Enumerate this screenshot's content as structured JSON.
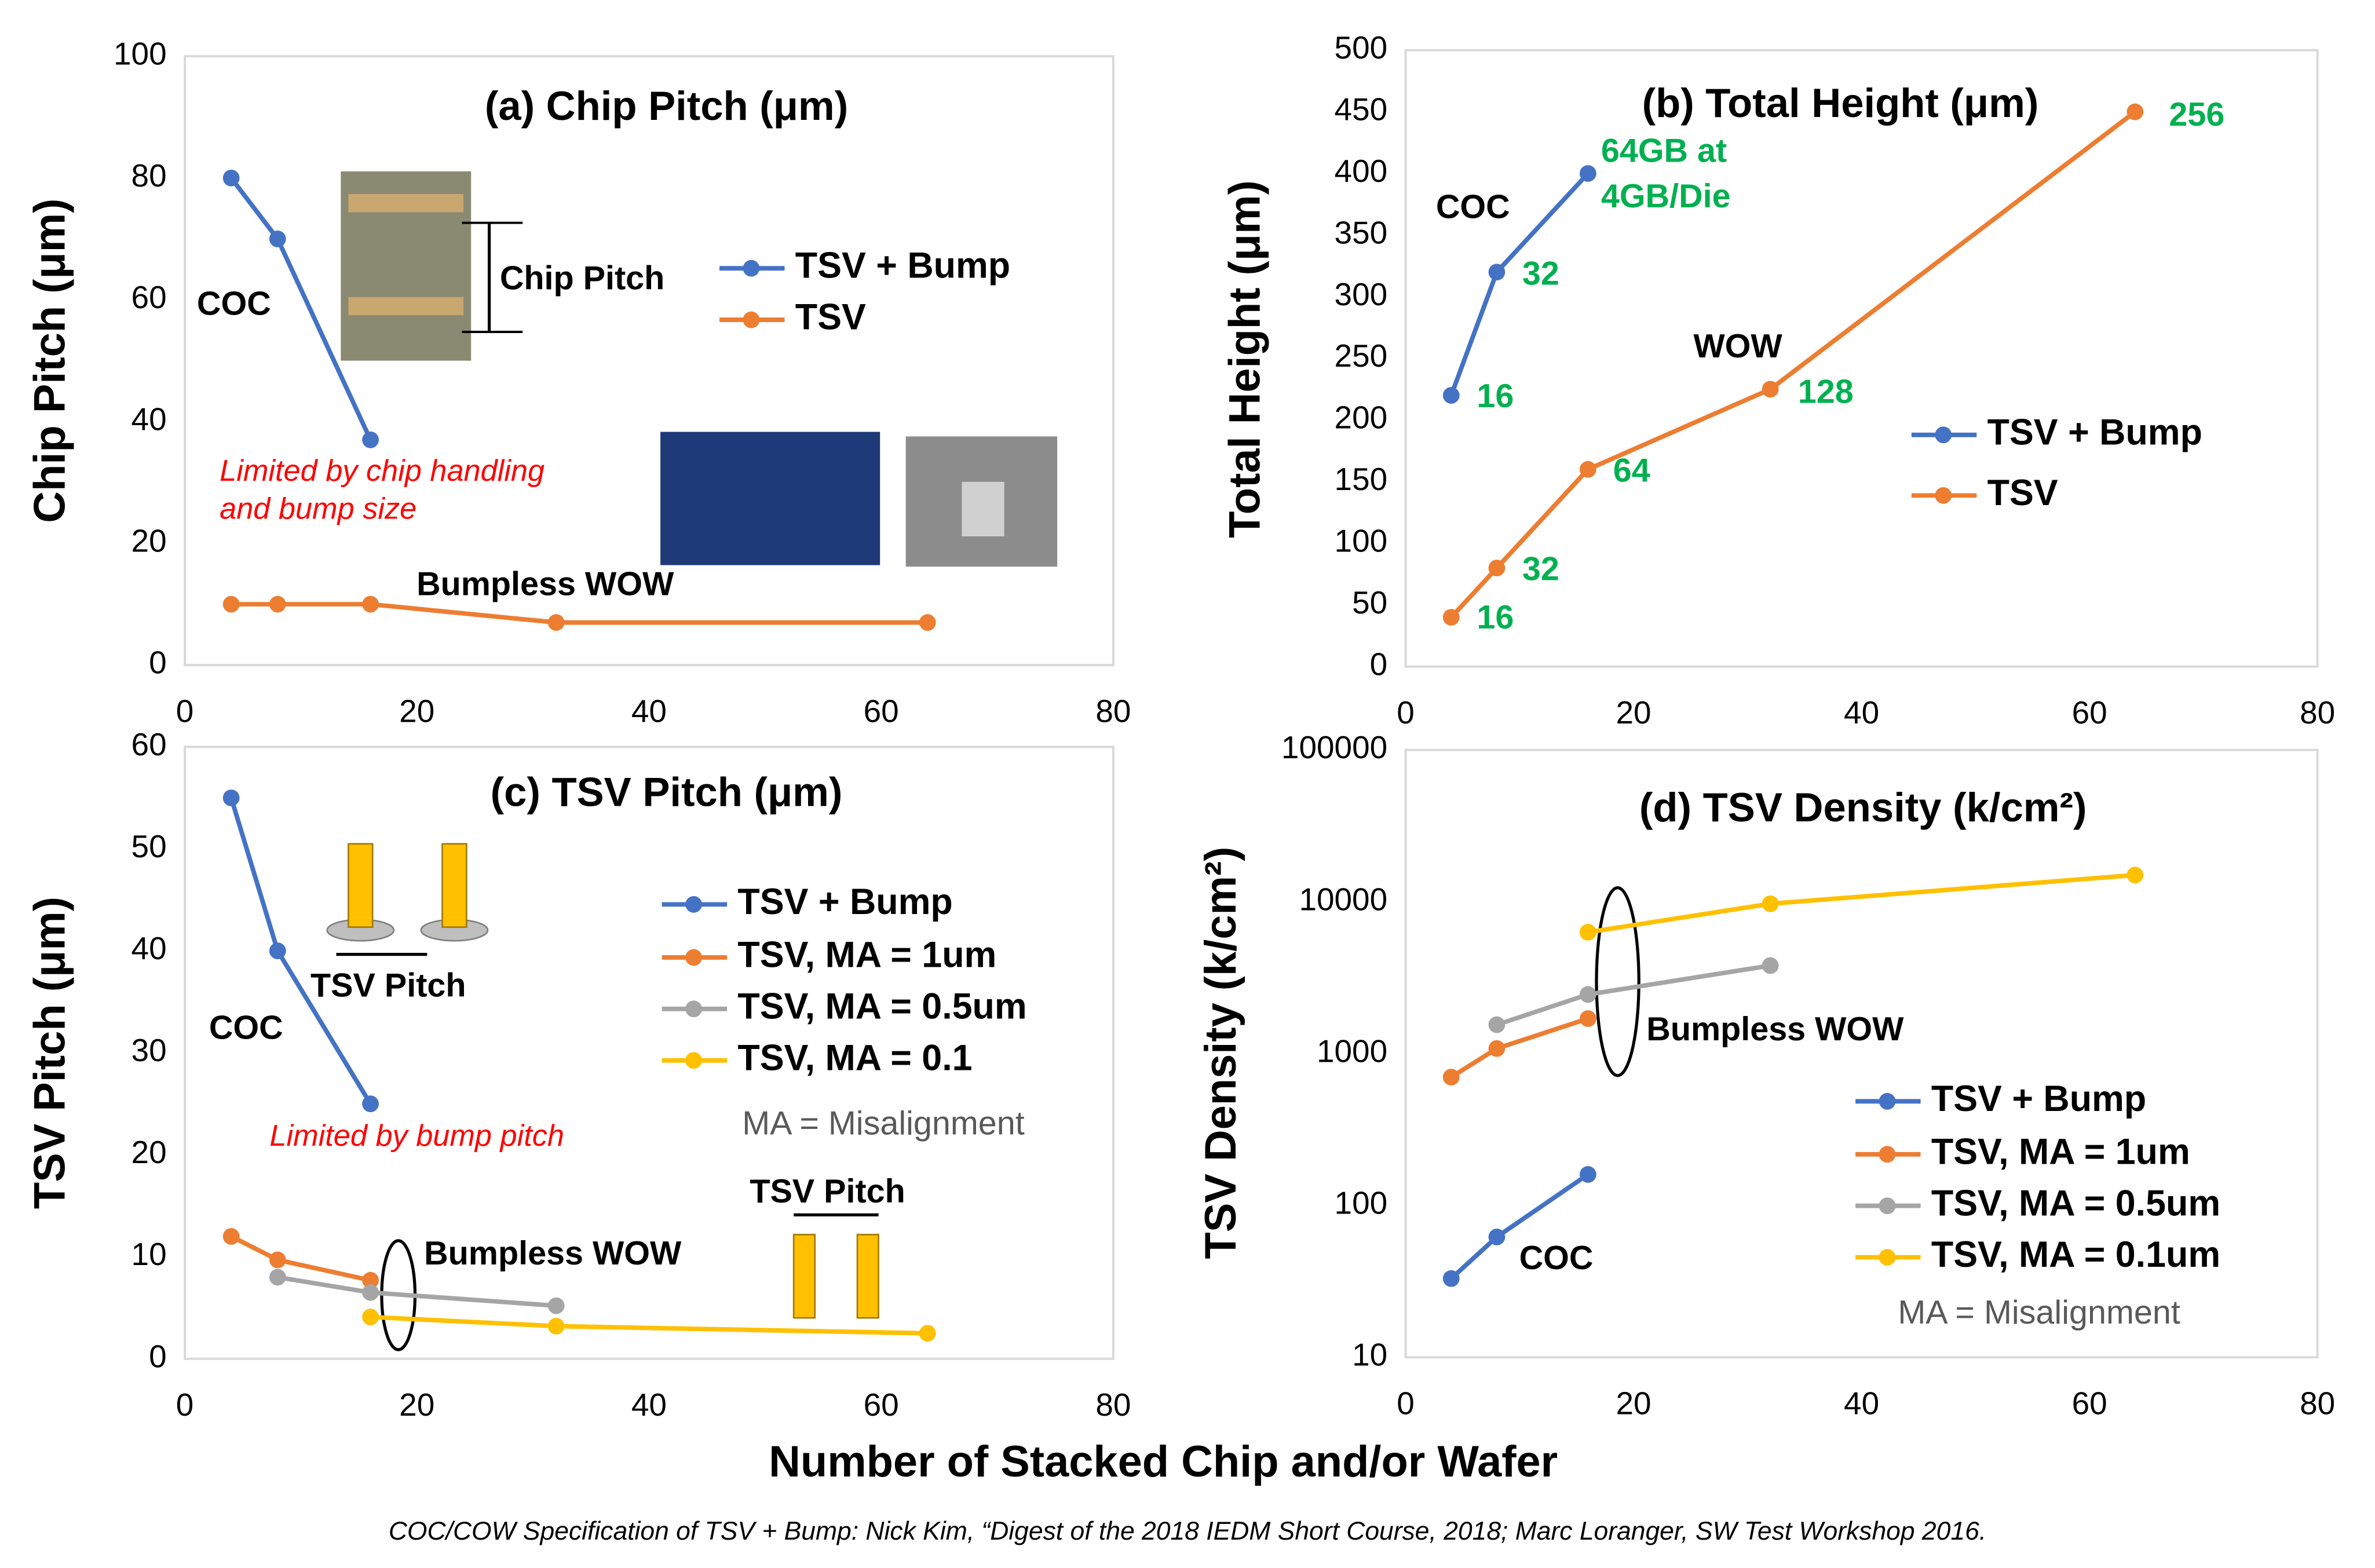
{
  "xlabel": "Number of Stacked Chip and/or Wafer",
  "footnote": "COC/COW Specification of TSV + Bump: Nick Kim, “Digest of the 2018 IEDM Short Course, 2018; Marc Loranger, SW Test Workshop 2016.",
  "chart_data": [
    {
      "type": "line",
      "title": "(a) Chip Pitch (μm)",
      "ylabel": "Chip Pitch (μm)",
      "xlim": [
        0,
        80
      ],
      "xticks": [
        0,
        20,
        40,
        60,
        80
      ],
      "ylim": [
        0,
        100
      ],
      "yticks": [
        0,
        20,
        40,
        60,
        80,
        100
      ],
      "series": [
        {
          "name": "TSV + Bump",
          "color": "#4472c4",
          "x": [
            4,
            8,
            16
          ],
          "values": [
            80,
            70,
            37
          ]
        },
        {
          "name": "TSV",
          "color": "#ed7d31",
          "x": [
            4,
            8,
            16,
            32,
            64
          ],
          "values": [
            10,
            10,
            10,
            7,
            7
          ]
        }
      ],
      "annotations": [
        {
          "text": "COC",
          "color": "#000000"
        },
        {
          "text": "Limited by chip handling",
          "color": "#ff0000",
          "style": "italic"
        },
        {
          "text": "and bump size",
          "color": "#ff0000",
          "style": "italic"
        },
        {
          "text": "Chip Pitch",
          "color": "#000000"
        },
        {
          "text": "Bumpless WOW",
          "color": "#000000"
        }
      ]
    },
    {
      "type": "line",
      "title": "(b) Total Height (μm)",
      "ylabel": "Total Height (μm)",
      "xlim": [
        0,
        80
      ],
      "xticks": [
        0,
        20,
        40,
        60,
        80
      ],
      "ylim": [
        0,
        500
      ],
      "yticks": [
        0,
        50,
        100,
        150,
        200,
        250,
        300,
        350,
        400,
        450,
        500
      ],
      "series": [
        {
          "name": "TSV + Bump",
          "color": "#4472c4",
          "x": [
            4,
            8,
            16
          ],
          "values": [
            220,
            320,
            400
          ]
        },
        {
          "name": "TSV",
          "color": "#ed7d31",
          "x": [
            4,
            8,
            16,
            32,
            64
          ],
          "values": [
            40,
            80,
            160,
            225,
            450
          ]
        }
      ],
      "annotations": [
        {
          "text": "COC",
          "color": "#000000"
        },
        {
          "text": "WOW",
          "color": "#000000"
        },
        {
          "text": "16",
          "color": "#00b050"
        },
        {
          "text": "32",
          "color": "#00b050"
        },
        {
          "text": "64GB at",
          "color": "#00b050"
        },
        {
          "text": "4GB/Die",
          "color": "#00b050"
        },
        {
          "text": "16",
          "color": "#00b050"
        },
        {
          "text": "32",
          "color": "#00b050"
        },
        {
          "text": "64",
          "color": "#00b050"
        },
        {
          "text": "128",
          "color": "#00b050"
        },
        {
          "text": "256",
          "color": "#00b050"
        }
      ]
    },
    {
      "type": "line",
      "title": "(c) TSV Pitch (μm)",
      "ylabel": "TSV Pitch (μm)",
      "xlim": [
        0,
        80
      ],
      "xticks": [
        0,
        20,
        40,
        60,
        80
      ],
      "ylim": [
        0,
        60
      ],
      "yticks": [
        0,
        10,
        20,
        30,
        40,
        50,
        60
      ],
      "series": [
        {
          "name": "TSV + Bump",
          "color": "#4472c4",
          "x": [
            4,
            8,
            16
          ],
          "values": [
            55,
            40,
            25
          ]
        },
        {
          "name": "TSV, MA = 1um",
          "color": "#ed7d31",
          "x": [
            4,
            8,
            16
          ],
          "values": [
            12,
            9.7,
            7.7
          ]
        },
        {
          "name": "TSV, MA = 0.5um",
          "color": "#a5a5a5",
          "x": [
            8,
            16,
            32
          ],
          "values": [
            8,
            6.5,
            5.2
          ]
        },
        {
          "name": "TSV, MA = 0.1",
          "color": "#ffc000",
          "x": [
            16,
            32,
            64
          ],
          "values": [
            4.1,
            3.2,
            2.5
          ]
        }
      ],
      "annotations": [
        {
          "text": "COC",
          "color": "#000000"
        },
        {
          "text": "Limited by bump pitch",
          "color": "#ff0000",
          "style": "italic"
        },
        {
          "text": "TSV Pitch",
          "color": "#000000"
        },
        {
          "text": "Bumpless  WOW",
          "color": "#000000"
        },
        {
          "text": "MA = Misalignment",
          "color": "#595959",
          "style": "normal"
        },
        {
          "text": "TSV Pitch",
          "color": "#000000"
        }
      ]
    },
    {
      "type": "line",
      "title": "(d) TSV Density (k/cm²)",
      "ylabel": "TSV Density (k/cm²)",
      "log_scale": true,
      "xlim": [
        0,
        80
      ],
      "xticks": [
        0,
        20,
        40,
        60,
        80
      ],
      "ylim": [
        10,
        100000
      ],
      "yticks": [
        10,
        100,
        1000,
        10000,
        100000
      ],
      "series": [
        {
          "name": "TSV + Bump",
          "color": "#4472c4",
          "x": [
            4,
            8,
            16
          ],
          "values": [
            33,
            62,
            160
          ]
        },
        {
          "name": "TSV, MA = 1um",
          "color": "#ed7d31",
          "x": [
            4,
            8,
            16
          ],
          "values": [
            700,
            1080,
            1700
          ]
        },
        {
          "name": "TSV, MA = 0.5um",
          "color": "#a5a5a5",
          "x": [
            8,
            16,
            32
          ],
          "values": [
            1550,
            2450,
            3800
          ]
        },
        {
          "name": "TSV, MA = 0.1um",
          "color": "#ffc000",
          "x": [
            16,
            32,
            64
          ],
          "values": [
            6300,
            9700,
            15000
          ]
        }
      ],
      "annotations": [
        {
          "text": "Bumpless WOW",
          "color": "#000000"
        },
        {
          "text": "COC",
          "color": "#000000"
        },
        {
          "text": "MA = Misalignment",
          "color": "#595959",
          "style": "normal"
        }
      ]
    }
  ]
}
